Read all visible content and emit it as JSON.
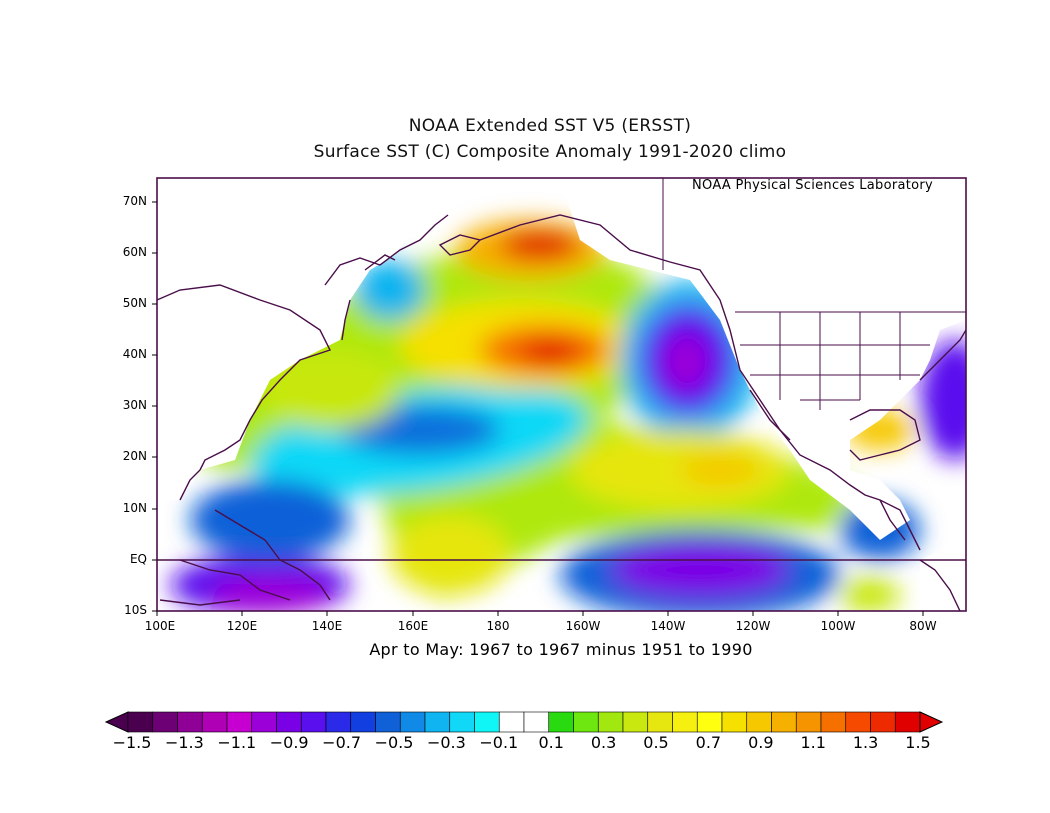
{
  "title_line1": "NOAA Extended SST V5 (ERSST)",
  "title_line2": "Surface SST (C) Composite Anomaly 1991-2020 climo",
  "credit": "NOAA Physical Sciences Laboratory",
  "subtitle": "Apr to May: 1967 to 1967 minus 1951 to 1990",
  "map": {
    "projection": "lat-lon",
    "lon_range": [
      100,
      290
    ],
    "lat_range": [
      -10,
      75
    ],
    "y_ticks": [
      "70N",
      "60N",
      "50N",
      "40N",
      "30N",
      "20N",
      "10N",
      "EQ",
      "10S"
    ],
    "x_ticks": [
      "100E",
      "120E",
      "140E",
      "160E",
      "180",
      "160W",
      "140W",
      "120W",
      "100W",
      "80W"
    ],
    "anomaly_features": [
      {
        "label": "warm-gulf-of-alaska",
        "lon": 192,
        "lat": 60,
        "value": 1.4
      },
      {
        "label": "warm-north-pacific",
        "lon": 193,
        "lat": 40,
        "value": 1.3
      },
      {
        "label": "cold-northeast-pacific",
        "lon": 222,
        "lat": 38,
        "value": -1.0
      },
      {
        "label": "cold-western-subtropics",
        "lon": 152,
        "lat": 25,
        "value": -0.5
      },
      {
        "label": "warm-central-subtropics",
        "lon": 230,
        "lat": 18,
        "value": 0.8
      },
      {
        "label": "warm-central-equatorial",
        "lon": 170,
        "lat": 2,
        "value": 0.7
      },
      {
        "label": "cold-eastern-equatorial",
        "lon": 228,
        "lat": -2,
        "value": -1.0
      },
      {
        "label": "cold-maritime-continent",
        "lon": 128,
        "lat": -7,
        "value": -1.1
      },
      {
        "label": "warm-gulf-of-mexico",
        "lon": 270,
        "lat": 27,
        "value": 0.9
      },
      {
        "label": "cold-western-atlantic",
        "lon": 288,
        "lat": 36,
        "value": -1.2
      },
      {
        "label": "warm-eastern-south-pacific",
        "lon": 272,
        "lat": -7,
        "value": 0.5
      }
    ]
  },
  "colorbar": {
    "min": -1.5,
    "max": 1.5,
    "step": 0.1,
    "tick_labels": [
      "-1.5",
      "-1.3",
      "-1.1",
      "-0.9",
      "-0.7",
      "-0.5",
      "-0.3",
      "-0.1",
      "0.1",
      "0.3",
      "0.5",
      "0.7",
      "0.9",
      "1.1",
      "1.3",
      "1.5"
    ],
    "colors": [
      "#4a004f",
      "#6e0075",
      "#8e0096",
      "#b000b6",
      "#c600d0",
      "#9c00d8",
      "#7a00e6",
      "#5a10ee",
      "#2a2ae8",
      "#1240e0",
      "#1060d8",
      "#108ae6",
      "#10b4f0",
      "#10d8f6",
      "#10f6f6",
      "#ffffff",
      "#ffffff",
      "#2ada10",
      "#6ee610",
      "#a2e810",
      "#c8e810",
      "#e6e610",
      "#f6f010",
      "#ffff10",
      "#f6e000",
      "#f6c800",
      "#f6b000",
      "#f69400",
      "#f67000",
      "#f64a00",
      "#ee2a00",
      "#e00000"
    ]
  }
}
